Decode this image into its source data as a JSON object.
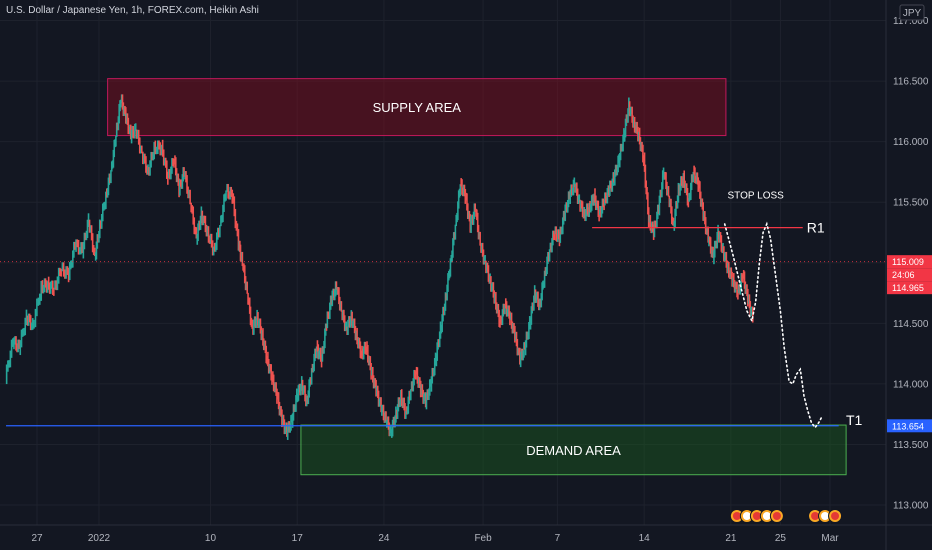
{
  "chart_data": {
    "type": "line",
    "title": "U.S. Dollar / Japanese Yen, 1h, FOREX.com, Heikin Ashi",
    "currency": "JPY",
    "xlabel": "",
    "ylabel": "",
    "ylim": [
      112.85,
      117.1
    ],
    "y_ticks": [
      "113.000",
      "113.500",
      "114.000",
      "114.500",
      "115.000",
      "115.500",
      "116.000",
      "116.500",
      "117.000"
    ],
    "x_ticks": [
      {
        "label": "27",
        "day": 0
      },
      {
        "label": "2022",
        "day": 5
      },
      {
        "label": "10",
        "day": 14
      },
      {
        "label": "17",
        "day": 21
      },
      {
        "label": "24",
        "day": 28
      },
      {
        "label": "Feb",
        "day": 36
      },
      {
        "label": "7",
        "day": 42
      },
      {
        "label": "14",
        "day": 49
      },
      {
        "label": "21",
        "day": 56
      },
      {
        "label": "25",
        "day": 60
      },
      {
        "label": "Mar",
        "day": 64
      }
    ],
    "x_range_days": [
      -2.5,
      64
    ],
    "colors": {
      "up": "#26a69a",
      "down": "#ef5350",
      "dotted": "#ffffff",
      "r1": "#f23645",
      "t1": "#2962ff",
      "grid": "#1e222d"
    },
    "zones": [
      {
        "name": "SUPPLY AREA",
        "day_from": 5.7,
        "day_to": 55.6,
        "y_from": 116.05,
        "y_to": 116.52,
        "fill": "rgba(136,14,30,0.45)",
        "stroke": "#c2185b"
      },
      {
        "name": "DEMAND AREA",
        "day_from": 21.3,
        "day_to": 65.3,
        "y_from": 113.25,
        "y_to": 113.66,
        "fill": "rgba(27,94,32,0.45)",
        "stroke": "#4caf50"
      }
    ],
    "levels": [
      {
        "name": "R1",
        "value": 115.29,
        "day_from": 44.8,
        "day_to": 61.8,
        "color": "#f23645"
      },
      {
        "name": "T1",
        "value": 113.654,
        "day_from": -2.5,
        "day_to": 64.7,
        "color": "#2962ff"
      }
    ],
    "annotations": [
      {
        "text": "STOP LOSS",
        "day": 58.0,
        "y": 115.53
      }
    ],
    "price_labels": [
      {
        "value": "115.009",
        "y": 115.009,
        "bg": "#f23645"
      },
      {
        "value": "24:06",
        "y": 114.9,
        "bg": "#f23645"
      },
      {
        "value": "114.965",
        "y": 114.8,
        "bg": "#f23645"
      },
      {
        "value": "113.654",
        "y": 113.654,
        "bg": "#2962ff"
      }
    ],
    "current_price": 115.009,
    "price_series": [
      [
        -2.5,
        114.05
      ],
      [
        -1.9,
        114.35
      ],
      [
        -1.4,
        114.3
      ],
      [
        -0.8,
        114.55
      ],
      [
        -0.3,
        114.48
      ],
      [
        0.4,
        114.8
      ],
      [
        0.9,
        114.82
      ],
      [
        1.4,
        114.78
      ],
      [
        2.0,
        114.95
      ],
      [
        2.6,
        114.9
      ],
      [
        3.1,
        115.15
      ],
      [
        3.7,
        115.1
      ],
      [
        4.2,
        115.35
      ],
      [
        4.7,
        115.05
      ],
      [
        5.1,
        115.3
      ],
      [
        5.6,
        115.55
      ],
      [
        6.0,
        115.75
      ],
      [
        6.4,
        116.05
      ],
      [
        6.8,
        116.35
      ],
      [
        7.2,
        116.2
      ],
      [
        7.6,
        116.05
      ],
      [
        8.0,
        116.1
      ],
      [
        8.5,
        115.9
      ],
      [
        9.0,
        115.75
      ],
      [
        9.5,
        115.95
      ],
      [
        10.1,
        115.95
      ],
      [
        10.6,
        115.7
      ],
      [
        11.1,
        115.85
      ],
      [
        11.5,
        115.6
      ],
      [
        11.9,
        115.75
      ],
      [
        12.4,
        115.5
      ],
      [
        12.9,
        115.2
      ],
      [
        13.3,
        115.4
      ],
      [
        13.8,
        115.25
      ],
      [
        14.3,
        115.1
      ],
      [
        14.8,
        115.3
      ],
      [
        15.3,
        115.6
      ],
      [
        15.8,
        115.55
      ],
      [
        16.3,
        115.15
      ],
      [
        16.6,
        115.0
      ],
      [
        17.0,
        114.75
      ],
      [
        17.4,
        114.45
      ],
      [
        17.8,
        114.55
      ],
      [
        18.2,
        114.4
      ],
      [
        18.6,
        114.2
      ],
      [
        19.0,
        114.05
      ],
      [
        19.4,
        113.9
      ],
      [
        19.8,
        113.7
      ],
      [
        20.2,
        113.6
      ],
      [
        20.6,
        113.7
      ],
      [
        21.0,
        113.9
      ],
      [
        21.4,
        114.0
      ],
      [
        21.8,
        113.85
      ],
      [
        22.2,
        114.1
      ],
      [
        22.6,
        114.3
      ],
      [
        23.0,
        114.2
      ],
      [
        23.4,
        114.5
      ],
      [
        23.8,
        114.7
      ],
      [
        24.2,
        114.8
      ],
      [
        24.6,
        114.6
      ],
      [
        25.0,
        114.45
      ],
      [
        25.4,
        114.55
      ],
      [
        25.8,
        114.4
      ],
      [
        26.2,
        114.25
      ],
      [
        26.6,
        114.3
      ],
      [
        27.0,
        114.1
      ],
      [
        27.4,
        113.95
      ],
      [
        27.8,
        113.8
      ],
      [
        28.2,
        113.7
      ],
      [
        28.6,
        113.6
      ],
      [
        29.0,
        113.75
      ],
      [
        29.4,
        113.9
      ],
      [
        29.8,
        113.75
      ],
      [
        30.2,
        113.95
      ],
      [
        30.6,
        114.1
      ],
      [
        31.0,
        113.95
      ],
      [
        31.4,
        113.85
      ],
      [
        31.8,
        114.0
      ],
      [
        32.2,
        114.2
      ],
      [
        32.6,
        114.45
      ],
      [
        33.0,
        114.7
      ],
      [
        33.4,
        115.0
      ],
      [
        33.8,
        115.3
      ],
      [
        34.2,
        115.65
      ],
      [
        34.6,
        115.55
      ],
      [
        35.0,
        115.3
      ],
      [
        35.4,
        115.45
      ],
      [
        35.8,
        115.15
      ],
      [
        36.2,
        115.0
      ],
      [
        36.6,
        114.85
      ],
      [
        37.0,
        114.7
      ],
      [
        37.4,
        114.5
      ],
      [
        37.8,
        114.65
      ],
      [
        38.2,
        114.55
      ],
      [
        38.6,
        114.4
      ],
      [
        39.0,
        114.2
      ],
      [
        39.4,
        114.3
      ],
      [
        39.8,
        114.5
      ],
      [
        40.2,
        114.75
      ],
      [
        40.6,
        114.65
      ],
      [
        41.0,
        114.9
      ],
      [
        41.4,
        115.1
      ],
      [
        41.8,
        115.25
      ],
      [
        42.2,
        115.2
      ],
      [
        42.6,
        115.4
      ],
      [
        43.0,
        115.55
      ],
      [
        43.4,
        115.65
      ],
      [
        43.8,
        115.5
      ],
      [
        44.2,
        115.4
      ],
      [
        44.6,
        115.45
      ],
      [
        45.0,
        115.55
      ],
      [
        45.4,
        115.4
      ],
      [
        45.8,
        115.5
      ],
      [
        46.2,
        115.6
      ],
      [
        46.6,
        115.7
      ],
      [
        47.0,
        115.85
      ],
      [
        47.4,
        116.05
      ],
      [
        47.8,
        116.3
      ],
      [
        48.2,
        116.15
      ],
      [
        48.6,
        116.05
      ],
      [
        49.0,
        115.85
      ],
      [
        49.4,
        115.35
      ],
      [
        49.8,
        115.25
      ],
      [
        50.2,
        115.45
      ],
      [
        50.6,
        115.75
      ],
      [
        51.0,
        115.55
      ],
      [
        51.4,
        115.3
      ],
      [
        51.8,
        115.6
      ],
      [
        52.2,
        115.7
      ],
      [
        52.6,
        115.5
      ],
      [
        53.0,
        115.75
      ],
      [
        53.4,
        115.65
      ],
      [
        53.8,
        115.4
      ],
      [
        54.2,
        115.2
      ],
      [
        54.6,
        115.05
      ],
      [
        55.0,
        115.25
      ],
      [
        55.4,
        115.1
      ],
      [
        55.8,
        114.95
      ],
      [
        56.2,
        114.85
      ],
      [
        56.6,
        114.75
      ],
      [
        57.0,
        114.9
      ],
      [
        57.4,
        114.7
      ],
      [
        57.8,
        114.55
      ]
    ],
    "projection_path": [
      [
        55.5,
        115.32
      ],
      [
        56.2,
        115.05
      ],
      [
        56.8,
        114.8
      ],
      [
        57.3,
        114.6
      ],
      [
        57.7,
        114.52
      ],
      [
        58.0,
        114.68
      ],
      [
        58.3,
        115.0
      ],
      [
        58.6,
        115.25
      ],
      [
        58.9,
        115.32
      ],
      [
        59.2,
        115.2
      ],
      [
        59.6,
        114.9
      ],
      [
        60.0,
        114.6
      ],
      [
        60.3,
        114.3
      ],
      [
        60.7,
        114.02
      ],
      [
        61.0,
        114.0
      ],
      [
        61.3,
        114.08
      ],
      [
        61.6,
        114.12
      ],
      [
        61.9,
        113.9
      ],
      [
        62.2,
        113.78
      ],
      [
        62.5,
        113.68
      ],
      [
        62.8,
        113.64
      ],
      [
        63.1,
        113.68
      ],
      [
        63.3,
        113.72
      ]
    ],
    "events": [
      {
        "day": 58.1,
        "count": 5
      },
      {
        "day": 63.6,
        "count": 3
      }
    ]
  }
}
